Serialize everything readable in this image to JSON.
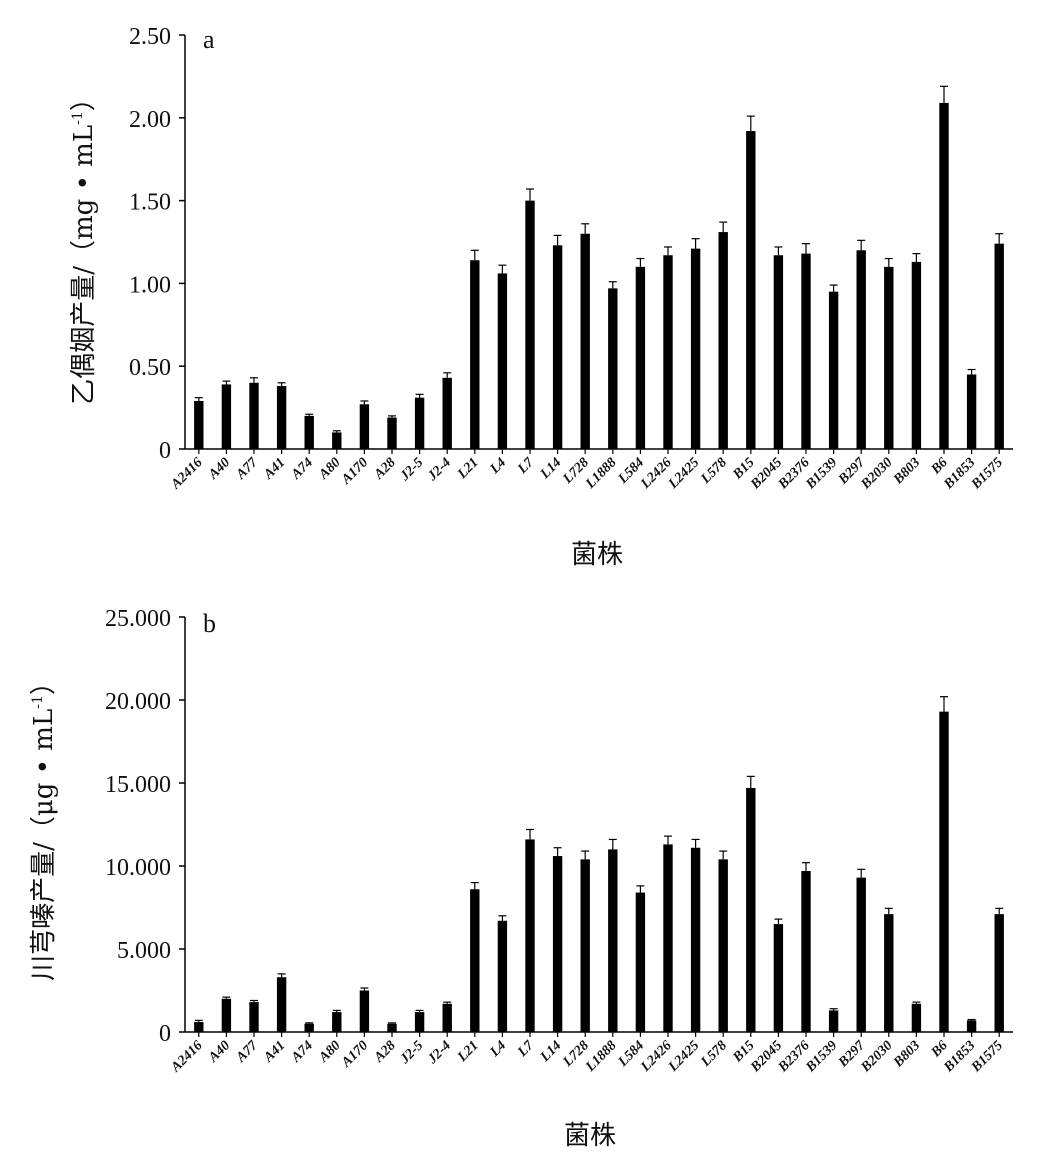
{
  "chart_data": [
    {
      "type": "bar",
      "panel_label": "a",
      "ylabel": "乙偶姻产量/（mg • mL",
      "ylabel_sup": "-1",
      "ylabel_close": "）",
      "xlabel": "菌株",
      "ylim": [
        0,
        2.5
      ],
      "yticks": [
        {
          "v": 0,
          "label": "0"
        },
        {
          "v": 0.5,
          "label": "0.50"
        },
        {
          "v": 1.0,
          "label": "1.00"
        },
        {
          "v": 1.5,
          "label": "1.50"
        },
        {
          "v": 2.0,
          "label": "2.00"
        },
        {
          "v": 2.5,
          "label": "2.50"
        }
      ],
      "categories": [
        "A2416",
        "A40",
        "A77",
        "A41",
        "A74",
        "A80",
        "A170",
        "A28",
        "J2-5",
        "J2-4",
        "L21",
        "L4",
        "L7",
        "L14",
        "L728",
        "L1888",
        "L584",
        "L2426",
        "L2425",
        "L578",
        "B15",
        "B2045",
        "B2376",
        "B1539",
        "B297",
        "B2030",
        "B803",
        "B6",
        "B1853",
        "B1575"
      ],
      "values": [
        0.29,
        0.39,
        0.4,
        0.38,
        0.2,
        0.1,
        0.27,
        0.19,
        0.31,
        0.43,
        1.14,
        1.06,
        1.5,
        1.23,
        1.3,
        0.97,
        1.1,
        1.17,
        1.21,
        1.31,
        1.92,
        1.17,
        1.18,
        0.95,
        1.2,
        1.1,
        1.13,
        2.09,
        0.45,
        1.24
      ],
      "errors": [
        0.02,
        0.02,
        0.03,
        0.02,
        0.01,
        0.01,
        0.02,
        0.01,
        0.02,
        0.03,
        0.06,
        0.05,
        0.07,
        0.06,
        0.06,
        0.04,
        0.05,
        0.05,
        0.06,
        0.06,
        0.09,
        0.05,
        0.06,
        0.04,
        0.06,
        0.05,
        0.05,
        0.1,
        0.03,
        0.06
      ],
      "bar_color": "#000000",
      "grid": false
    },
    {
      "type": "bar",
      "panel_label": "b",
      "ylabel": "川芎嗪产量/（μg • mL",
      "ylabel_sup": "-1",
      "ylabel_close": "）",
      "xlabel": "菌株",
      "ylim": [
        0,
        25
      ],
      "yticks": [
        {
          "v": 0,
          "label": "0"
        },
        {
          "v": 5,
          "label": "5.000"
        },
        {
          "v": 10,
          "label": "10.000"
        },
        {
          "v": 15,
          "label": "15.000"
        },
        {
          "v": 20,
          "label": "20.000"
        },
        {
          "v": 25,
          "label": "25.000"
        }
      ],
      "categories": [
        "A2416",
        "A40",
        "A77",
        "A41",
        "A74",
        "A80",
        "A170",
        "A28",
        "J2-5",
        "J2-4",
        "L21",
        "L4",
        "L7",
        "L14",
        "L728",
        "L1888",
        "L584",
        "L2426",
        "L2425",
        "L578",
        "B15",
        "B2045",
        "B2376",
        "B1539",
        "B297",
        "B2030",
        "B803",
        "B6",
        "B1853",
        "B1575"
      ],
      "values": [
        0.6,
        2.0,
        1.8,
        3.3,
        0.5,
        1.2,
        2.5,
        0.5,
        1.2,
        1.7,
        8.6,
        6.7,
        11.6,
        10.6,
        10.4,
        11.0,
        8.4,
        11.3,
        11.1,
        10.4,
        14.7,
        6.5,
        9.7,
        1.3,
        9.3,
        7.1,
        1.7,
        19.3,
        0.7,
        7.1
      ],
      "errors": [
        0.1,
        0.1,
        0.1,
        0.2,
        0.05,
        0.1,
        0.15,
        0.05,
        0.1,
        0.1,
        0.4,
        0.3,
        0.6,
        0.5,
        0.5,
        0.6,
        0.4,
        0.5,
        0.5,
        0.5,
        0.7,
        0.3,
        0.5,
        0.1,
        0.5,
        0.35,
        0.1,
        0.9,
        0.05,
        0.35
      ],
      "bar_color": "#000000",
      "grid": false
    }
  ]
}
